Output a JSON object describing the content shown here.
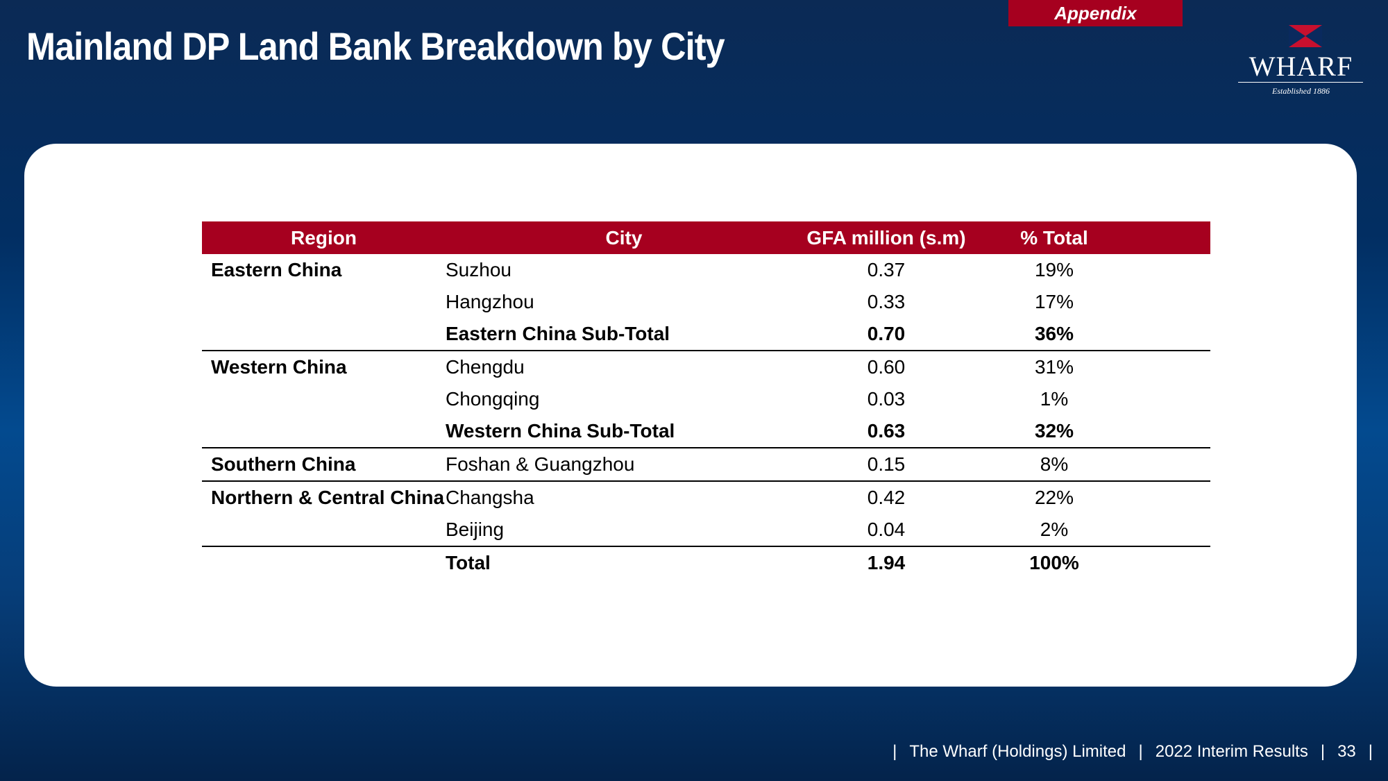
{
  "appendix_label": "Appendix",
  "title": "Mainland DP Land Bank Breakdown by City",
  "logo": {
    "name": "WHARF",
    "established": "Established 1886",
    "colors": {
      "red": "#c8102e",
      "navy": "#0a2a5e"
    }
  },
  "table": {
    "headers": {
      "region": "Region",
      "city": "City",
      "gfa": "GFA million (s.m)",
      "pct": "% Total"
    },
    "rows": [
      {
        "region": "Eastern China",
        "city": "Suzhou",
        "gfa": "0.37",
        "pct": "19%"
      },
      {
        "region": "",
        "city": "Hangzhou",
        "gfa": "0.33",
        "pct": "17%"
      },
      {
        "region": "",
        "city": "Eastern China Sub-Total",
        "gfa": "0.70",
        "pct": "36%"
      },
      {
        "region": "Western China",
        "city": "Chengdu",
        "gfa": "0.60",
        "pct": "31%"
      },
      {
        "region": "",
        "city": "Chongqing",
        "gfa": "0.03",
        "pct": "1%"
      },
      {
        "region": "",
        "city": "Western China Sub-Total",
        "gfa": "0.63",
        "pct": "32%"
      },
      {
        "region": "Southern China",
        "city": "Foshan & Guangzhou",
        "gfa": "0.15",
        "pct": "8%"
      },
      {
        "region": "Northern & Central China",
        "city": "Changsha",
        "gfa": "0.42",
        "pct": "22%"
      },
      {
        "region": "",
        "city": "Beijing",
        "gfa": "0.04",
        "pct": "2%"
      },
      {
        "region": "",
        "city": "Total",
        "gfa": "1.94",
        "pct": "100%"
      }
    ]
  },
  "footer": {
    "sep": "|",
    "company": "The Wharf (Holdings) Limited",
    "report": "2022 Interim Results",
    "page": "33"
  }
}
